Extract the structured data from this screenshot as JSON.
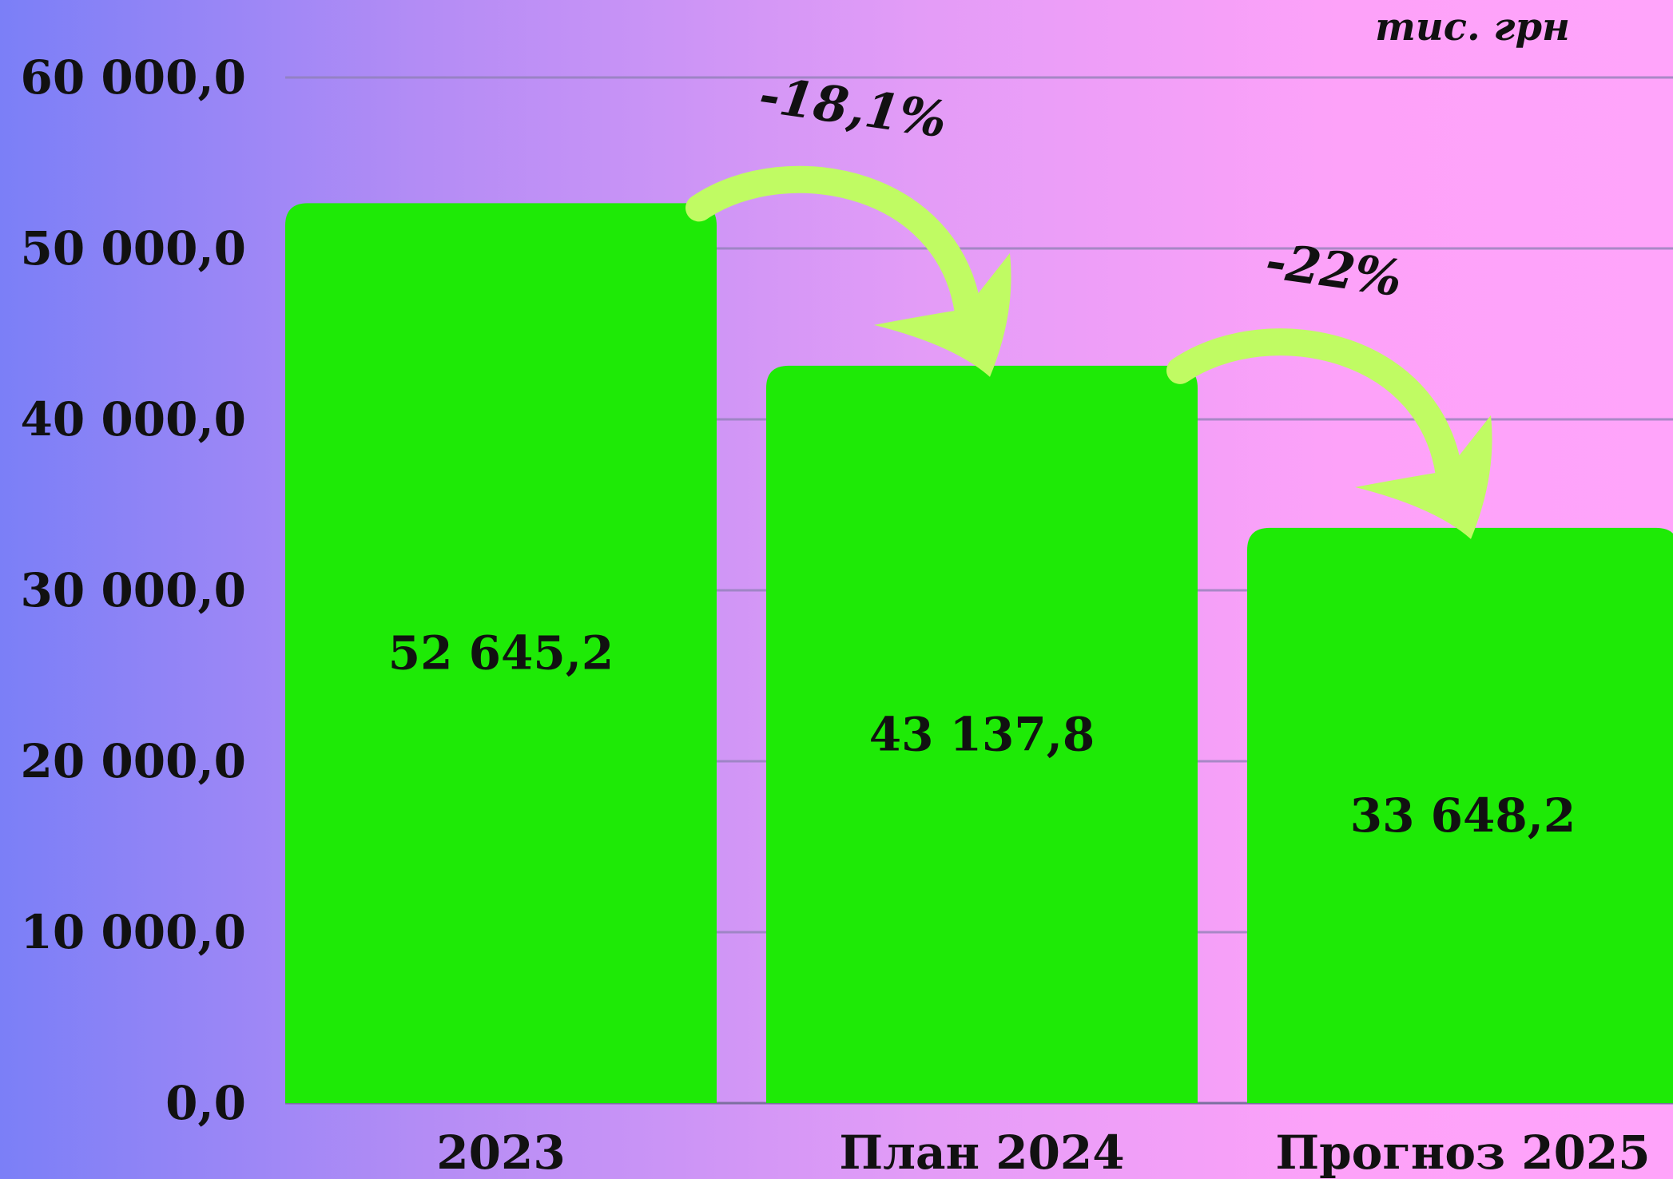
{
  "chart_data": {
    "type": "bar",
    "unit": "тис. грн",
    "categories": [
      "2023",
      "План 2024",
      "Прогноз 2025"
    ],
    "values": [
      52645.2,
      43137.8,
      33648.2
    ],
    "value_labels": [
      "52 645,2",
      "43 137,8",
      "33 648,2"
    ],
    "ylim": [
      0,
      60000
    ],
    "yticks": [
      0,
      10000,
      20000,
      30000,
      40000,
      50000,
      60000
    ],
    "ytick_labels": [
      "0,0",
      "10 000,0",
      "20 000,0",
      "30 000,0",
      "40 000,0",
      "50 000,0",
      "60 000,0"
    ],
    "grid": true,
    "bar_color": "#1eea06",
    "arrow_color": "#c0fb63",
    "annotations": [
      {
        "text": "-18,1%",
        "from": "2023",
        "to": "План 2024"
      },
      {
        "text": "-22%",
        "from": "План 2024",
        "to": "Прогноз 2025"
      }
    ]
  }
}
